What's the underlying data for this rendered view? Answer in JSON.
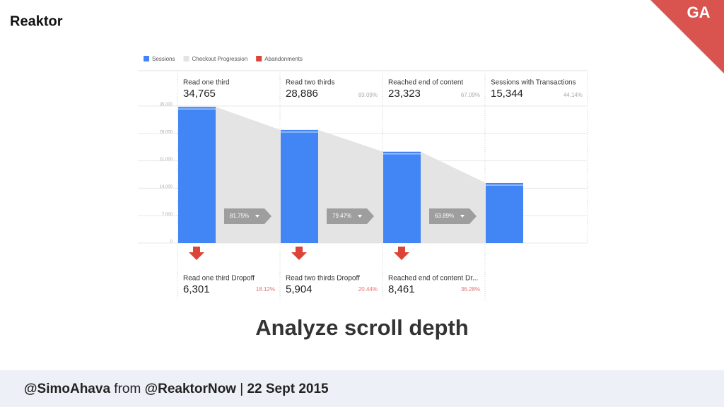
{
  "logo": "Reaktor",
  "badge": "GA",
  "chart_data": {
    "type": "bar",
    "categories": [
      "Read one third",
      "Read two thirds",
      "Reached end of content",
      "Sessions with Transactions"
    ],
    "values": [
      34765,
      28886,
      23323,
      15344
    ],
    "value_labels": [
      "34,765",
      "28,886",
      "23,323",
      "15,344"
    ],
    "retained_labels": [
      "83.09%",
      "67.09%",
      "44.14%"
    ],
    "conversion_labels": [
      "81.75%",
      "79.47%",
      "63.89%"
    ],
    "dropoff": {
      "categories": [
        "Read one third Dropoff",
        "Read two thirds Dropoff",
        "Reached end of content Dr..."
      ],
      "values": [
        6301,
        5904,
        8461
      ],
      "value_labels": [
        "6,301",
        "5,904",
        "8,461"
      ],
      "percent_labels": [
        "18.12%",
        "20.44%",
        "36.28%"
      ]
    },
    "legend": [
      {
        "name": "Sessions",
        "color": "#4285f4"
      },
      {
        "name": "Checkout Progression",
        "color": "#e4e4e4"
      },
      {
        "name": "Abandonments",
        "color": "#db4437"
      }
    ],
    "ylim": [
      0,
      35000
    ],
    "yticks": [
      0,
      {
        "value": 7000,
        "label": "7,000"
      },
      {
        "value": 14000,
        "label": "14,000"
      },
      {
        "value": 21000,
        "label": "21,000"
      },
      {
        "value": 28000,
        "label": "28,000"
      },
      {
        "value": 35000,
        "label": "35,000"
      }
    ],
    "grid": true
  },
  "slide_title": "Analyze scroll depth",
  "footer": {
    "handle": "@SimoAhava",
    "from": "from",
    "company": "@ReaktorNow",
    "separator": "|",
    "date": "22 Sept 2015"
  }
}
